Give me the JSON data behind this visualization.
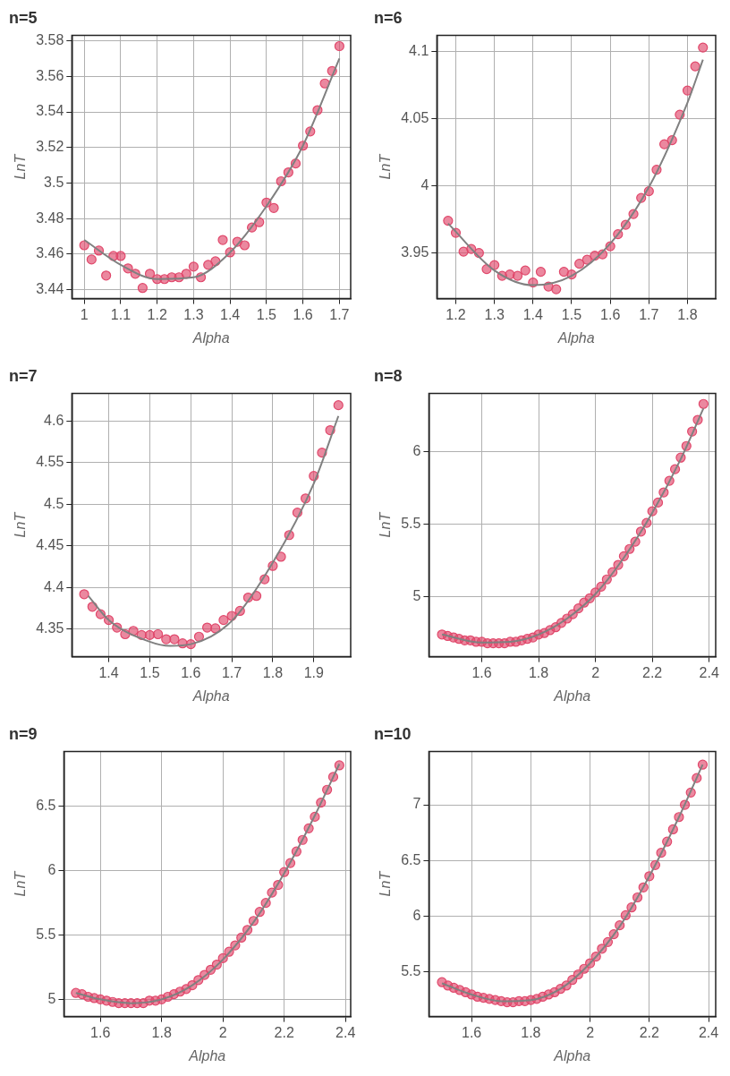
{
  "chart_data": [
    {
      "type": "scatter",
      "title": "n=5",
      "xlabel": "Alpha",
      "ylabel": "LnT",
      "grid": true,
      "xlim": [
        0.966,
        1.731
      ],
      "ylim": [
        3.435,
        3.583
      ],
      "xticks": [
        1,
        1.1,
        1.2,
        1.3,
        1.4,
        1.5,
        1.6,
        1.7
      ],
      "yticks": [
        3.44,
        3.46,
        3.48,
        3.5,
        3.52,
        3.54,
        3.56,
        3.58
      ],
      "series": [
        {
          "type": "scatter",
          "marker": "circle",
          "color": "#e0486b",
          "x": [
            1.0,
            1.02,
            1.04,
            1.06,
            1.08,
            1.1,
            1.12,
            1.14,
            1.16,
            1.18,
            1.2,
            1.22,
            1.24,
            1.26,
            1.28,
            1.3,
            1.32,
            1.34,
            1.36,
            1.38,
            1.4,
            1.42,
            1.44,
            1.46,
            1.48,
            1.5,
            1.52,
            1.54,
            1.56,
            1.58,
            1.6,
            1.62,
            1.64,
            1.66,
            1.68,
            1.7
          ],
          "values": [
            3.465,
            3.457,
            3.462,
            3.448,
            3.459,
            3.459,
            3.452,
            3.449,
            3.441,
            3.449,
            3.446,
            3.446,
            3.447,
            3.447,
            3.449,
            3.453,
            3.447,
            3.454,
            3.456,
            3.468,
            3.461,
            3.467,
            3.465,
            3.475,
            3.478,
            3.489,
            3.486,
            3.501,
            3.506,
            3.511,
            3.521,
            3.529,
            3.541,
            3.556,
            3.563,
            3.577
          ]
        },
        {
          "type": "line",
          "color": "#808080",
          "x": [
            1.0,
            1.1,
            1.2,
            1.3,
            1.4,
            1.5,
            1.6,
            1.7
          ],
          "values": [
            3.468,
            3.454,
            3.446,
            3.447,
            3.461,
            3.487,
            3.521,
            3.57
          ]
        }
      ]
    },
    {
      "type": "scatter",
      "title": "n=6",
      "xlabel": "Alpha",
      "ylabel": "LnT",
      "grid": true,
      "xlim": [
        1.151,
        1.873
      ],
      "ylim": [
        3.916,
        4.112
      ],
      "xticks": [
        1.2,
        1.3,
        1.4,
        1.5,
        1.6,
        1.7,
        1.8
      ],
      "yticks": [
        3.95,
        4,
        4.05,
        4.1
      ],
      "series": [
        {
          "type": "scatter",
          "marker": "circle",
          "color": "#e0486b",
          "x": [
            1.18,
            1.2,
            1.22,
            1.24,
            1.26,
            1.28,
            1.3,
            1.32,
            1.34,
            1.36,
            1.38,
            1.4,
            1.42,
            1.44,
            1.46,
            1.48,
            1.5,
            1.52,
            1.54,
            1.56,
            1.58,
            1.6,
            1.62,
            1.64,
            1.66,
            1.68,
            1.7,
            1.72,
            1.74,
            1.76,
            1.78,
            1.8,
            1.82,
            1.84
          ],
          "values": [
            3.974,
            3.965,
            3.951,
            3.953,
            3.95,
            3.938,
            3.941,
            3.933,
            3.934,
            3.933,
            3.937,
            3.928,
            3.936,
            3.925,
            3.923,
            3.936,
            3.934,
            3.942,
            3.945,
            3.948,
            3.949,
            3.955,
            3.964,
            3.971,
            3.979,
            3.991,
            3.996,
            4.012,
            4.031,
            4.034,
            4.053,
            4.071,
            4.089,
            4.103
          ]
        },
        {
          "type": "line",
          "color": "#808080",
          "x": [
            1.18,
            1.3,
            1.4,
            1.5,
            1.6,
            1.7,
            1.8,
            1.84
          ],
          "values": [
            3.972,
            3.937,
            3.926,
            3.933,
            3.957,
            3.999,
            4.062,
            4.094
          ]
        }
      ]
    },
    {
      "type": "scatter",
      "title": "n=7",
      "xlabel": "Alpha",
      "ylabel": "LnT",
      "grid": true,
      "xlim": [
        1.31,
        1.99
      ],
      "ylim": [
        4.317,
        4.633
      ],
      "xticks": [
        1.4,
        1.5,
        1.6,
        1.7,
        1.8,
        1.9
      ],
      "yticks": [
        4.35,
        4.4,
        4.45,
        4.5,
        4.55,
        4.6
      ],
      "series": [
        {
          "type": "scatter",
          "marker": "circle",
          "color": "#e0486b",
          "x": [
            1.34,
            1.36,
            1.38,
            1.4,
            1.42,
            1.44,
            1.46,
            1.48,
            1.5,
            1.52,
            1.54,
            1.56,
            1.58,
            1.6,
            1.62,
            1.64,
            1.66,
            1.68,
            1.7,
            1.72,
            1.74,
            1.76,
            1.78,
            1.8,
            1.82,
            1.84,
            1.86,
            1.88,
            1.9,
            1.92,
            1.94,
            1.96
          ],
          "values": [
            4.392,
            4.377,
            4.368,
            4.361,
            4.352,
            4.344,
            4.348,
            4.343,
            4.343,
            4.344,
            4.338,
            4.338,
            4.333,
            4.332,
            4.341,
            4.352,
            4.351,
            4.361,
            4.366,
            4.372,
            4.388,
            4.39,
            4.41,
            4.426,
            4.437,
            4.463,
            4.49,
            4.507,
            4.534,
            4.562,
            4.589,
            4.619
          ]
        },
        {
          "type": "line",
          "color": "#808080",
          "x": [
            1.35,
            1.4,
            1.5,
            1.55,
            1.6,
            1.7,
            1.8,
            1.9,
            1.96
          ],
          "values": [
            4.39,
            4.361,
            4.335,
            4.33,
            4.332,
            4.36,
            4.43,
            4.525,
            4.606
          ]
        }
      ]
    },
    {
      "type": "scatter",
      "title": "n=8",
      "xlabel": "Alpha",
      "ylabel": "LnT",
      "grid": true,
      "xlim": [
        1.414,
        2.423
      ],
      "ylim": [
        4.587,
        6.402
      ],
      "xticks": [
        1.6,
        1.8,
        2,
        2.2,
        2.4
      ],
      "yticks": [
        5,
        5.5,
        6
      ],
      "series": [
        {
          "type": "scatter",
          "marker": "circle",
          "color": "#e0486b",
          "x": [
            1.46,
            1.48,
            1.5,
            1.52,
            1.54,
            1.56,
            1.58,
            1.6,
            1.62,
            1.64,
            1.66,
            1.68,
            1.7,
            1.72,
            1.74,
            1.76,
            1.78,
            1.8,
            1.82,
            1.84,
            1.86,
            1.88,
            1.9,
            1.92,
            1.94,
            1.96,
            1.98,
            2.0,
            2.02,
            2.04,
            2.06,
            2.08,
            2.1,
            2.12,
            2.14,
            2.16,
            2.18,
            2.2,
            2.22,
            2.24,
            2.26,
            2.28,
            2.3,
            2.32,
            2.34,
            2.36,
            2.38
          ],
          "values": [
            4.74,
            4.73,
            4.72,
            4.71,
            4.7,
            4.7,
            4.69,
            4.69,
            4.68,
            4.68,
            4.68,
            4.68,
            4.69,
            4.69,
            4.7,
            4.71,
            4.72,
            4.74,
            4.75,
            4.77,
            4.79,
            4.82,
            4.85,
            4.88,
            4.92,
            4.96,
            4.99,
            5.03,
            5.07,
            5.12,
            5.17,
            5.22,
            5.28,
            5.33,
            5.38,
            5.45,
            5.51,
            5.59,
            5.65,
            5.72,
            5.8,
            5.88,
            5.96,
            6.04,
            6.14,
            6.22,
            6.33
          ]
        },
        {
          "type": "line",
          "color": "#808080",
          "x": [
            1.46,
            1.6,
            1.7,
            1.8,
            1.9,
            2.0,
            2.1,
            2.2,
            2.3,
            2.38
          ],
          "values": [
            4.74,
            4.685,
            4.69,
            4.74,
            4.85,
            5.02,
            5.27,
            5.58,
            5.95,
            6.3
          ]
        }
      ]
    },
    {
      "type": "scatter",
      "title": "n=9",
      "xlabel": "Alpha",
      "ylabel": "LnT",
      "grid": true,
      "xlim": [
        1.481,
        2.417
      ],
      "ylim": [
        4.866,
        6.927
      ],
      "xticks": [
        1.6,
        1.8,
        2,
        2.2,
        2.4
      ],
      "yticks": [
        5,
        5.5,
        6,
        6.5
      ],
      "series": [
        {
          "type": "scatter",
          "marker": "circle",
          "color": "#e0486b",
          "x": [
            1.52,
            1.54,
            1.56,
            1.58,
            1.6,
            1.62,
            1.64,
            1.66,
            1.68,
            1.7,
            1.72,
            1.74,
            1.76,
            1.78,
            1.8,
            1.82,
            1.84,
            1.86,
            1.88,
            1.9,
            1.92,
            1.94,
            1.96,
            1.98,
            2.0,
            2.02,
            2.04,
            2.06,
            2.08,
            2.1,
            2.12,
            2.14,
            2.16,
            2.18,
            2.2,
            2.22,
            2.24,
            2.26,
            2.28,
            2.3,
            2.32,
            2.34,
            2.36,
            2.38
          ],
          "values": [
            5.05,
            5.04,
            5.02,
            5.01,
            5.0,
            4.99,
            4.98,
            4.97,
            4.97,
            4.97,
            4.97,
            4.97,
            4.99,
            4.99,
            5.0,
            5.02,
            5.04,
            5.06,
            5.08,
            5.11,
            5.15,
            5.19,
            5.23,
            5.27,
            5.32,
            5.37,
            5.42,
            5.48,
            5.54,
            5.61,
            5.68,
            5.75,
            5.83,
            5.89,
            5.99,
            6.06,
            6.15,
            6.24,
            6.33,
            6.42,
            6.53,
            6.63,
            6.73,
            6.82
          ]
        },
        {
          "type": "line",
          "color": "#808080",
          "x": [
            1.52,
            1.6,
            1.7,
            1.8,
            1.9,
            2.0,
            2.1,
            2.2,
            2.3,
            2.38
          ],
          "values": [
            5.05,
            5.0,
            4.97,
            5.0,
            5.11,
            5.31,
            5.6,
            5.98,
            6.43,
            6.83
          ]
        }
      ]
    },
    {
      "type": "scatter",
      "title": "n=10",
      "xlabel": "Alpha",
      "ylabel": "LnT",
      "grid": true,
      "xlim": [
        1.456,
        2.424
      ],
      "ylim": [
        5.102,
        7.477
      ],
      "xticks": [
        1.6,
        1.8,
        2,
        2.2,
        2.4
      ],
      "yticks": [
        5.5,
        6,
        6.5,
        7
      ],
      "series": [
        {
          "type": "scatter",
          "marker": "circle",
          "color": "#e0486b",
          "x": [
            1.5,
            1.52,
            1.54,
            1.56,
            1.58,
            1.6,
            1.62,
            1.64,
            1.66,
            1.68,
            1.7,
            1.72,
            1.74,
            1.76,
            1.78,
            1.8,
            1.82,
            1.84,
            1.86,
            1.88,
            1.9,
            1.92,
            1.94,
            1.96,
            1.98,
            2.0,
            2.02,
            2.04,
            2.06,
            2.08,
            2.1,
            2.12,
            2.14,
            2.16,
            2.18,
            2.2,
            2.22,
            2.24,
            2.26,
            2.28,
            2.3,
            2.32,
            2.34,
            2.36,
            2.38
          ],
          "values": [
            5.41,
            5.38,
            5.36,
            5.34,
            5.32,
            5.3,
            5.28,
            5.27,
            5.26,
            5.25,
            5.24,
            5.23,
            5.23,
            5.24,
            5.24,
            5.25,
            5.26,
            5.28,
            5.3,
            5.32,
            5.35,
            5.38,
            5.43,
            5.48,
            5.53,
            5.58,
            5.64,
            5.71,
            5.77,
            5.84,
            5.92,
            6.01,
            6.08,
            6.17,
            6.26,
            6.36,
            6.46,
            6.57,
            6.67,
            6.78,
            6.89,
            7.0,
            7.11,
            7.24,
            7.36
          ]
        },
        {
          "type": "line",
          "color": "#808080",
          "x": [
            1.5,
            1.6,
            1.7,
            1.8,
            1.9,
            2.0,
            2.1,
            2.2,
            2.3,
            2.38
          ],
          "values": [
            5.4,
            5.3,
            5.24,
            5.25,
            5.35,
            5.58,
            5.91,
            6.36,
            6.89,
            7.36
          ]
        }
      ]
    }
  ]
}
